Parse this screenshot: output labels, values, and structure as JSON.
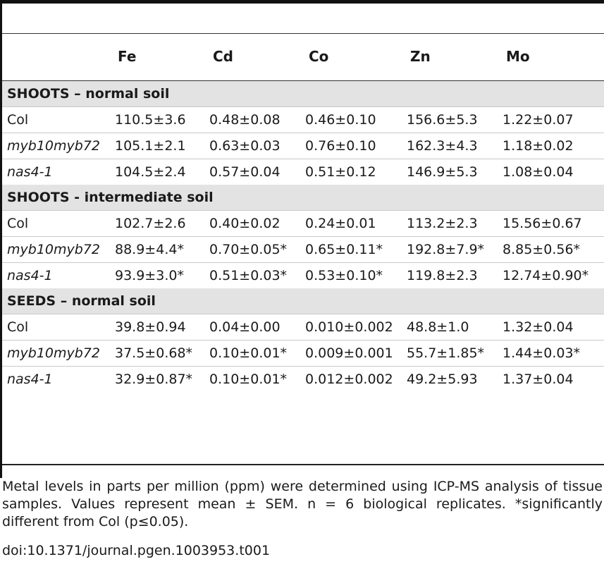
{
  "table": {
    "columns": [
      "",
      "Fe",
      "Cd",
      "Co",
      "Zn",
      "Mo"
    ],
    "sections": [
      {
        "title": "SHOOTS – normal soil",
        "rows": [
          {
            "name": "Col",
            "italic": false,
            "values": [
              "110.5±3.6",
              "0.48±0.08",
              "0.46±0.10",
              "156.6±5.3",
              "1.22±0.07"
            ]
          },
          {
            "name": "myb10myb72",
            "italic": true,
            "values": [
              "105.1±2.1",
              "0.63±0.03",
              "0.76±0.10",
              "162.3±4.3",
              "1.18±0.02"
            ]
          },
          {
            "name": "nas4-1",
            "italic": true,
            "values": [
              "104.5±2.4",
              "0.57±0.04",
              "0.51±0.12",
              "146.9±5.3",
              "1.08±0.04"
            ]
          }
        ]
      },
      {
        "title": "SHOOTS - intermediate soil",
        "rows": [
          {
            "name": "Col",
            "italic": false,
            "values": [
              "102.7±2.6",
              "0.40±0.02",
              "0.24±0.01",
              "113.2±2.3",
              "15.56±0.67"
            ]
          },
          {
            "name": "myb10myb72",
            "italic": true,
            "values": [
              "88.9±4.4*",
              "0.70±0.05*",
              "0.65±0.11*",
              "192.8±7.9*",
              "8.85±0.56*"
            ]
          },
          {
            "name": "nas4-1",
            "italic": true,
            "values": [
              "93.9±3.0*",
              "0.51±0.03*",
              "0.53±0.10*",
              "119.8±2.3",
              "12.74±0.90*"
            ]
          }
        ]
      },
      {
        "title": "SEEDS – normal soil",
        "rows": [
          {
            "name": "Col",
            "italic": false,
            "values": [
              "39.8±0.94",
              "0.04±0.00",
              "0.010±0.002",
              "48.8±1.0",
              "1.32±0.04"
            ]
          },
          {
            "name": "myb10myb72",
            "italic": true,
            "values": [
              "37.5±0.68*",
              "0.10±0.01*",
              "0.009±0.001",
              "55.7±1.85*",
              "1.44±0.03*"
            ]
          },
          {
            "name": "nas4-1",
            "italic": true,
            "values": [
              "32.9±0.87*",
              "0.10±0.01*",
              "0.012±0.002",
              "49.2±5.93",
              "1.37±0.04"
            ]
          }
        ]
      }
    ]
  },
  "footnote": "Metal levels in parts per million (ppm) were determined using ICP-MS analysis of tissue samples. Values represent mean ± SEM. n = 6 biological replicates. *significantly different from Col (p≤0.05).",
  "doi": "doi:10.1371/journal.pgen.1003953.t001"
}
